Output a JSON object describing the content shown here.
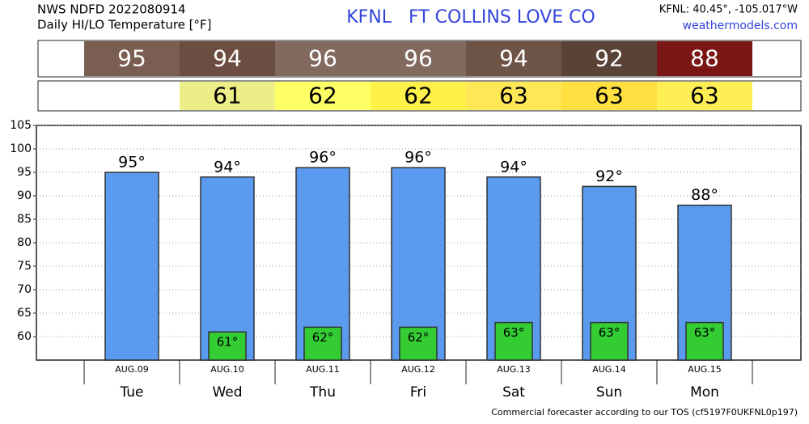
{
  "header": {
    "source": "NWS NDFD 2022080914",
    "subtitle": "Daily HI/LO Temperature [°F]",
    "station": "KFNL   FT COLLINS LOVE CO",
    "coords": "KFNL: 40.45°, -105.017°W",
    "site": "weathermodels.com"
  },
  "footer": "Commercial forecaster according to our TOS (cf5197F0UKFNL0p197)",
  "chart_data": {
    "type": "bar",
    "categories": [
      "Tue",
      "Wed",
      "Thu",
      "Fri",
      "Sat",
      "Sun",
      "Mon"
    ],
    "dates": [
      "AUG.09",
      "AUG.10",
      "AUG.11",
      "AUG.12",
      "AUG.13",
      "AUG.14",
      "AUG.15"
    ],
    "series": [
      {
        "color": "#5b9bef",
        "values": [
          95,
          94,
          96,
          96,
          94,
          92,
          88
        ],
        "value_labels": [
          "95°",
          "94°",
          "96°",
          "96°",
          "94°",
          "92°",
          "88°"
        ],
        "strip_colors": [
          "#7b5e52",
          "#6b4d41",
          "#836a5f",
          "#836a5f",
          "#6e5347",
          "#5a4236",
          "#7a1614"
        ]
      },
      {
        "color": "#33cc33",
        "values": [
          null,
          61,
          62,
          62,
          63,
          63,
          63
        ],
        "value_labels": [
          null,
          "61°",
          "62°",
          "62°",
          "63°",
          "63°",
          "63°"
        ],
        "strip_colors": [
          null,
          "#eeee88",
          "#ffff66",
          "#fff04a",
          "#ffe855",
          "#ffe040",
          "#ffef55"
        ]
      }
    ],
    "ylim": [
      55,
      105
    ],
    "yticks": [
      60,
      65,
      70,
      75,
      80,
      85,
      90,
      95,
      100,
      105
    ],
    "grid": true
  }
}
